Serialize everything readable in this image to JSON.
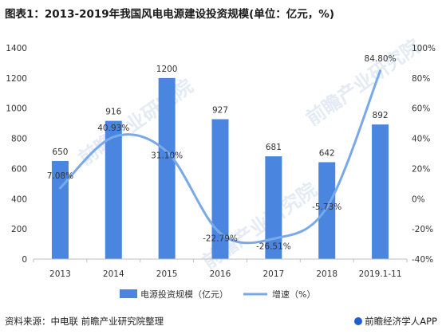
{
  "title": "图表1：2013-2019年我国风电电源建设投资规模(单位：亿元，%)",
  "source": "资料来源：中电联 前瞻产业研究院整理",
  "brand": "前瞻经济学人APP",
  "watermark": "前瞻产业研究院",
  "colors": {
    "bar": "#4a86e0",
    "line": "#7aa9ea",
    "axis": "#bfbfbf",
    "text": "#333333"
  },
  "chart_data": {
    "type": "bar",
    "categories": [
      "2013",
      "2014",
      "2015",
      "2016",
      "2017",
      "2018",
      "2019.1-11"
    ],
    "series": [
      {
        "name": "电源投资规模（亿元）",
        "type": "bar",
        "axis": "left",
        "values": [
          650,
          916,
          1200,
          927,
          681,
          642,
          892
        ],
        "labels": [
          "650",
          "916",
          "1200",
          "927",
          "681",
          "642",
          "892"
        ]
      },
      {
        "name": "增速（%）",
        "type": "line",
        "smooth": true,
        "axis": "right",
        "values": [
          7.08,
          40.93,
          31.1,
          -22.79,
          -26.51,
          -5.73,
          84.8
        ],
        "labels": [
          "7.08%",
          "40.93%",
          "31.10%",
          "-22.79%",
          "-26.51%",
          "-5.73%",
          "84.80%"
        ]
      }
    ],
    "y_left": {
      "min": 0,
      "max": 1400,
      "ticks": [
        0,
        200,
        400,
        600,
        800,
        1000,
        1200,
        1400
      ]
    },
    "y_right": {
      "min": -40,
      "max": 100,
      "ticks": [
        "-40%",
        "-20%",
        "0%",
        "20%",
        "40%",
        "60%",
        "80%",
        "100%"
      ],
      "tick_values": [
        -40,
        -20,
        0,
        20,
        40,
        60,
        80,
        100
      ]
    },
    "grid": false,
    "legend": "bottom"
  }
}
